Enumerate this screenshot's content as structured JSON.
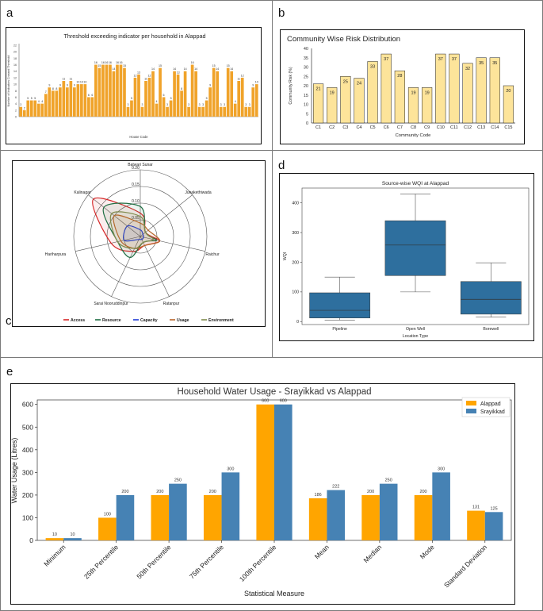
{
  "panels": {
    "a": "a",
    "b": "b",
    "c": "c",
    "d": "d",
    "e": "e"
  },
  "chart_data": [
    {
      "id": "a",
      "type": "bar",
      "title": "Threshold exceeding indicator per household in Alappad",
      "xlabel": "House Code",
      "ylabel": "Number of Indicators Crossed Threshold",
      "ylim": [
        0,
        22
      ],
      "yticks": [
        0,
        2,
        4,
        6,
        8,
        10,
        12,
        14,
        16,
        18,
        20,
        22
      ],
      "color": "#f0a32a",
      "values": [
        3,
        2,
        5,
        5,
        5,
        4,
        4,
        7,
        9,
        8,
        8,
        9,
        11,
        9,
        11,
        9,
        10,
        10,
        10,
        6,
        6,
        16,
        15,
        16,
        16,
        16,
        14,
        16,
        16,
        15,
        3,
        5,
        12,
        13,
        3,
        11,
        12,
        14,
        4,
        15,
        6,
        3,
        5,
        14,
        13,
        8,
        14,
        3,
        16,
        14,
        3,
        3,
        5,
        9,
        15,
        14,
        3,
        3,
        15,
        14,
        4,
        11,
        12,
        3,
        3,
        9,
        10
      ]
    },
    {
      "id": "b",
      "type": "bar",
      "title": "Community Wise Risk Distribution",
      "xlabel": "Community Code",
      "ylabel": "Community Risk (%)",
      "ylim": [
        0,
        40
      ],
      "yticks": [
        0,
        5,
        10,
        15,
        20,
        25,
        30,
        35,
        40
      ],
      "color": "#fde49a",
      "categories": [
        "C1",
        "C2",
        "C3",
        "C4",
        "C5",
        "C6",
        "C7",
        "C8",
        "C9",
        "C10",
        "C11",
        "C12",
        "C13",
        "C14",
        "C15"
      ],
      "values": [
        21,
        19,
        25,
        24,
        33,
        37,
        28,
        19,
        19,
        37,
        37,
        32,
        35,
        35,
        20
      ]
    },
    {
      "id": "c",
      "type": "radar",
      "axes": [
        "Batwari Sunar",
        "Junakethiwada",
        "Raichur",
        "Ratanpur",
        "Sarai Nooruddinpur",
        "Hariharpura",
        "Kalinagar"
      ],
      "rticks": [
        0.05,
        0.1,
        0.15,
        0.2
      ],
      "rticks_labels": [
        "0.05",
        "0.10",
        "0.15",
        "0.20"
      ],
      "rmax": 0.2,
      "series": [
        {
          "name": "Access",
          "color": "#d62728",
          "values": [
            0.07,
            0.02,
            0.06,
            0.03,
            0.05,
            0.09,
            0.18
          ]
        },
        {
          "name": "Resource",
          "color": "#1f6e43",
          "values": [
            0.09,
            0.02,
            0.05,
            0.02,
            0.07,
            0.07,
            0.14
          ]
        },
        {
          "name": "Capacity",
          "color": "#1f3cd6",
          "values": [
            0.02,
            0.01,
            0.01,
            0.01,
            0.01,
            0.05,
            0.05
          ]
        },
        {
          "name": "Usage",
          "color": "#b8652a",
          "values": [
            0.04,
            0.03,
            0.06,
            0.03,
            0.04,
            0.06,
            0.1
          ]
        },
        {
          "name": "Environment",
          "color": "#7f8a4c",
          "values": [
            0.06,
            0.02,
            0.04,
            0.02,
            0.04,
            0.07,
            0.11
          ]
        }
      ]
    },
    {
      "id": "d",
      "type": "box",
      "title": "Source-wise WQI at Alappad",
      "xlabel": "Location Type",
      "ylabel": "WQI",
      "ylim": [
        -10,
        450
      ],
      "yticks": [
        0,
        100,
        200,
        300,
        400
      ],
      "color": "#2e6f9e",
      "categories": [
        "Pipeline",
        "Open Well",
        "Borewell"
      ],
      "boxes": [
        {
          "whislo": 5,
          "q1": 12,
          "med": 38,
          "q3": 97,
          "whishi": 150
        },
        {
          "whislo": 100,
          "q1": 155,
          "med": 258,
          "q3": 340,
          "whishi": 430
        },
        {
          "whislo": 15,
          "q1": 25,
          "med": 75,
          "q3": 135,
          "whishi": 198
        }
      ]
    },
    {
      "id": "e",
      "type": "bar",
      "title": "Household Water Usage - Srayikkad vs Alappad",
      "xlabel": "Statistical Measure",
      "ylabel": "Water Usage (Litres)",
      "ylim": [
        0,
        620
      ],
      "yticks": [
        0,
        100,
        200,
        300,
        400,
        500,
        600
      ],
      "categories": [
        "Minimum",
        "25th Percentile",
        "50th Percentile",
        "75th Percentile",
        "100th Percentile",
        "Mean",
        "Median",
        "Mode",
        "Standard Deviation"
      ],
      "series": [
        {
          "name": "Alappad",
          "color": "#ffa500",
          "values": [
            10,
            100,
            200,
            200,
            600,
            186,
            200,
            200,
            131
          ]
        },
        {
          "name": "Srayikkad",
          "color": "#4682b4",
          "values": [
            10,
            200,
            250,
            300,
            600,
            222,
            250,
            300,
            125
          ]
        }
      ]
    }
  ]
}
